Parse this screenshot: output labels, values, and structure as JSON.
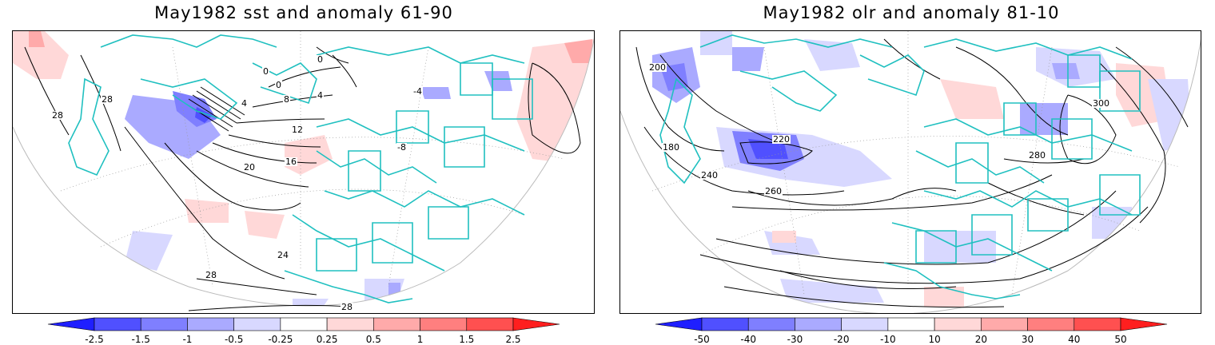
{
  "panels": [
    {
      "title": "May1982 sst and anomaly 61-90",
      "field": "sst",
      "contour_labels": [
        "0",
        "0",
        "0",
        "4",
        "4",
        "8",
        "12",
        "16",
        "20",
        "24",
        "28",
        "28",
        "28",
        "28",
        "-4",
        "-8"
      ],
      "colorbar": {
        "tick_labels": [
          "-2.5",
          "-1.5",
          "-1",
          "-0.5",
          "-0.25",
          "0.25",
          "0.5",
          "1",
          "1.5",
          "2.5"
        ],
        "colors": [
          "#1f1fff",
          "#5050ff",
          "#7f7fff",
          "#aaaaff",
          "#d8d8ff",
          "#ffffff",
          "#ffd8d8",
          "#ffaaaa",
          "#ff7f7f",
          "#ff5050",
          "#ff1f1f"
        ]
      }
    },
    {
      "title": "May1982 olr and anomaly 81-10",
      "field": "olr",
      "contour_labels": [
        "180",
        "200",
        "220",
        "240",
        "260",
        "280",
        "300"
      ],
      "colorbar": {
        "tick_labels": [
          "-50",
          "-40",
          "-30",
          "-20",
          "-10",
          "10",
          "20",
          "30",
          "40",
          "50"
        ],
        "colors": [
          "#1f1fff",
          "#5050ff",
          "#7f7fff",
          "#aaaaff",
          "#d8d8ff",
          "#ffffff",
          "#ffd8d8",
          "#ffaaaa",
          "#ff7f7f",
          "#ff5050",
          "#ff1f1f"
        ]
      }
    }
  ],
  "style": {
    "coastline_color": "#20c0c0",
    "contour_color": "#000000",
    "graticule_color": "#999999"
  }
}
